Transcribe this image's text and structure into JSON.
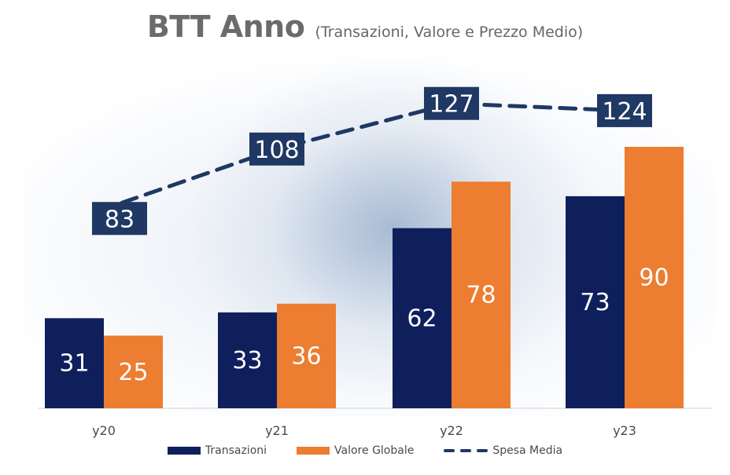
{
  "colors": {
    "transazioni": "#0f1f5c",
    "valore_globale": "#ec7d31",
    "spesa_media": "#1f3864",
    "axis_text": "#4a4a4a"
  },
  "chart_data": {
    "type": "bar",
    "title": "BTT Anno",
    "subtitle": "(Transazioni, Valore e Prezzo Medio)",
    "categories": [
      "y20",
      "y21",
      "y22",
      "y23"
    ],
    "series": [
      {
        "name": "Transazioni",
        "type": "bar",
        "values": [
          31,
          33,
          62,
          73
        ]
      },
      {
        "name": "Valore Globale",
        "type": "bar",
        "values": [
          25,
          36,
          78,
          90
        ]
      },
      {
        "name": "Spesa Media",
        "type": "line",
        "style": "dashed",
        "values": [
          83,
          108,
          127,
          124
        ]
      }
    ],
    "bar_ylim": [
      0,
      100
    ],
    "line_ylim": [
      0,
      140
    ],
    "grid": false,
    "legend_position": "bottom"
  }
}
